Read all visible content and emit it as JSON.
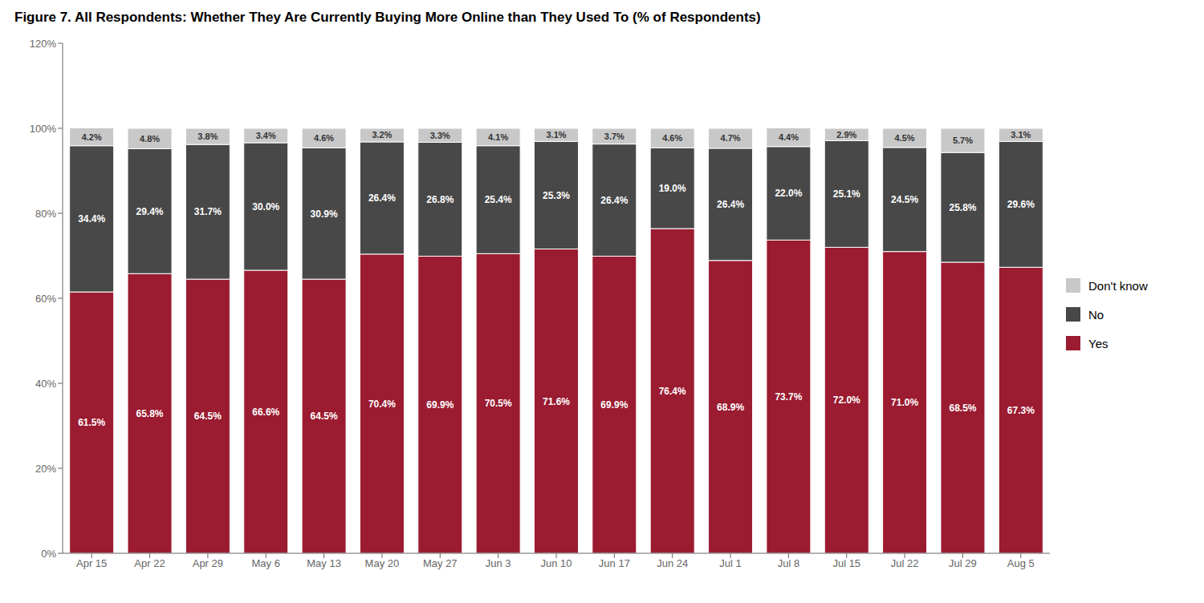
{
  "chart_data": {
    "type": "bar",
    "stacked": true,
    "title": "Figure 7. All Respondents: Whether They Are Currently Buying More Online than They Used To (% of Respondents)",
    "categories": [
      "Apr 15",
      "Apr 22",
      "Apr 29",
      "May 6",
      "May 13",
      "May 20",
      "May 27",
      "Jun 3",
      "Jun 10",
      "Jun 17",
      "Jun 24",
      "Jul 1",
      "Jul 8",
      "Jul 15",
      "Jul 22",
      "Jul 29",
      "Aug 5"
    ],
    "series": [
      {
        "name": "Yes",
        "color": "#9B1B30",
        "values": [
          61.5,
          65.8,
          64.5,
          66.6,
          64.5,
          70.4,
          69.9,
          70.5,
          71.6,
          69.9,
          76.4,
          68.9,
          73.7,
          72.0,
          71.0,
          68.5,
          67.3
        ],
        "value_labels": [
          "61.5%",
          "65.8%",
          "64.5%",
          "66.6%",
          "64.5%",
          "70.4%",
          "69.9%",
          "70.5%",
          "71.6%",
          "69.9%",
          "76.4%",
          "68.9%",
          "73.7%",
          "72.0%",
          "71.0%",
          "68.5%",
          "67.3%"
        ]
      },
      {
        "name": "No",
        "color": "#484848",
        "values": [
          34.4,
          29.4,
          31.7,
          30.0,
          30.9,
          26.4,
          26.8,
          25.4,
          25.3,
          26.4,
          19.0,
          26.4,
          22.0,
          25.1,
          24.5,
          25.8,
          29.6
        ],
        "value_labels": [
          "34.4%",
          "29.4%",
          "31.7%",
          "30.0%",
          "30.9%",
          "26.4%",
          "26.8%",
          "25.4%",
          "25.3%",
          "26.4%",
          "19.0%",
          "26.4%",
          "22.0%",
          "25.1%",
          "24.5%",
          "25.8%",
          "29.6%"
        ]
      },
      {
        "name": "Don't know",
        "color": "#C8C8C8",
        "values": [
          4.2,
          4.8,
          3.8,
          3.4,
          4.6,
          3.2,
          3.3,
          4.1,
          3.1,
          3.7,
          4.6,
          4.7,
          4.4,
          2.9,
          4.5,
          5.7,
          3.1
        ],
        "value_labels": [
          "4.2%",
          "4.8%",
          "3.8%",
          "3.4%",
          "4.6%",
          "3.2%",
          "3.3%",
          "4.1%",
          "3.1%",
          "3.7%",
          "4.6%",
          "4.7%",
          "4.4%",
          "2.9%",
          "4.5%",
          "5.7%",
          "3.1%"
        ]
      }
    ],
    "ylim": [
      0,
      120
    ],
    "yticks": [
      {
        "value": 0,
        "label": "0%"
      },
      {
        "value": 20,
        "label": "20%"
      },
      {
        "value": 40,
        "label": "40%"
      },
      {
        "value": 60,
        "label": "60%"
      },
      {
        "value": 80,
        "label": "80%"
      },
      {
        "value": 100,
        "label": "100%"
      },
      {
        "value": 120,
        "label": "120%"
      }
    ],
    "grid": false,
    "legend": "right",
    "data_labels": true
  }
}
